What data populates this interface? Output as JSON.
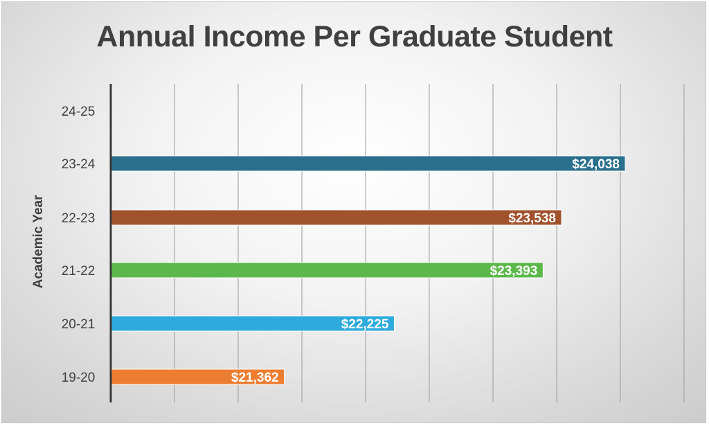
{
  "chart_data": {
    "type": "bar",
    "orientation": "horizontal",
    "title": "Annual Income Per Graduate Student",
    "ylabel": "Academic Year",
    "xlabel": "",
    "categories": [
      "19-20",
      "20-21",
      "21-22",
      "22-23",
      "23-24",
      "24-25"
    ],
    "values": [
      21362,
      22225,
      23393,
      23538,
      24038,
      null
    ],
    "data_labels": [
      "$21,362",
      "$22,225",
      "$23,393",
      "$23,538",
      "$24,038",
      ""
    ],
    "colors": [
      "#ED7D31",
      "#2EAADC",
      "#5CB84A",
      "#A0522D",
      "#2A6F8C",
      "#000000"
    ],
    "xlim": [
      20000,
      24500
    ],
    "grid": "vertical",
    "legend": "none"
  }
}
